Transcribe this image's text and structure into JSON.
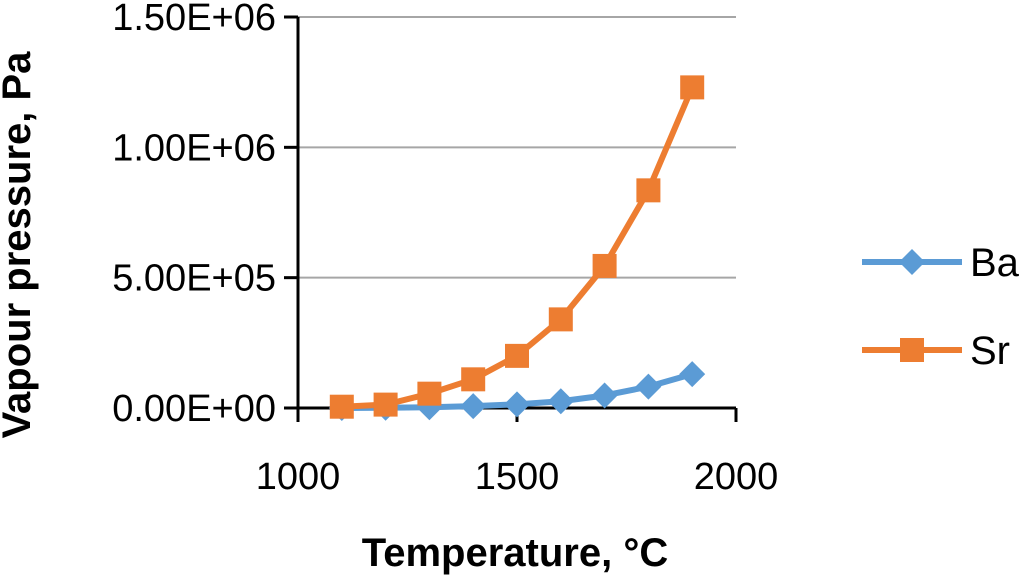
{
  "chart_data": {
    "type": "line",
    "xlabel": "Temperature, °C",
    "ylabel": "Vapour pressure, Pa",
    "xlim": [
      1000,
      2000
    ],
    "ylim": [
      0,
      1500000
    ],
    "x_ticks": [
      "1000",
      "1500",
      "2000"
    ],
    "x_tick_values": [
      1000,
      1500,
      2000
    ],
    "y_ticks": [
      "0.00E+00",
      "5.00E+05",
      "1.00E+06",
      "1.50E+06"
    ],
    "y_tick_values": [
      0,
      500000,
      1000000,
      1500000
    ],
    "grid": "horizontal",
    "legend_position": "right",
    "x": [
      1100,
      1200,
      1300,
      1400,
      1500,
      1600,
      1700,
      1800,
      1900
    ],
    "series": [
      {
        "name": "Ba",
        "marker": "diamond",
        "color": "#5B9BD5",
        "values": [
          0,
          1000,
          3000,
          7000,
          14000,
          26000,
          48000,
          82000,
          130000
        ]
      },
      {
        "name": "Sr",
        "marker": "square",
        "color": "#ED7D31",
        "values": [
          5000,
          13000,
          55000,
          110000,
          200000,
          340000,
          545000,
          835000,
          1230000
        ]
      }
    ]
  }
}
